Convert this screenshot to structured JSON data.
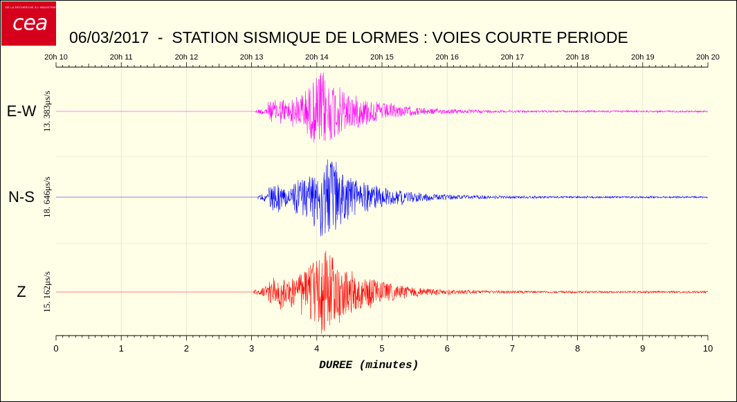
{
  "logo": {
    "text": "cea",
    "tagline": "DE LA RECHERCHE À L'INDUSTRIE"
  },
  "title": "06/03/2017  -  STATION SISMIQUE DE LORMES : VOIES COURTE PERIODE",
  "chart_data": {
    "type": "line",
    "xlabel": "DUREE (minutes)",
    "xlim": [
      0,
      10
    ],
    "x_ticks": [
      "0",
      "1",
      "2",
      "3",
      "4",
      "5",
      "6",
      "7",
      "8",
      "9",
      "10"
    ],
    "top_ticks": [
      "20h 10",
      "20h 11",
      "20h 12",
      "20h 13",
      "20h 14",
      "20h 15",
      "20h 16",
      "20h 17",
      "20h 18",
      "20h 19",
      "20h 20"
    ],
    "grid": true,
    "series": [
      {
        "name": "E-W",
        "scale": "13. 383μs/s",
        "color": "#ff00ff",
        "onset_min": 3.08,
        "peak_min": 4.05,
        "end_min": 10
      },
      {
        "name": "N-S",
        "scale": "18. 646μs/s",
        "color": "#0000ff",
        "onset_min": 3.12,
        "peak_min": 4.1,
        "end_min": 10
      },
      {
        "name": "Z",
        "scale": "15. 162μs/s",
        "color": "#ff0000",
        "onset_min": 3.05,
        "peak_min": 4.1,
        "end_min": 10
      }
    ]
  }
}
